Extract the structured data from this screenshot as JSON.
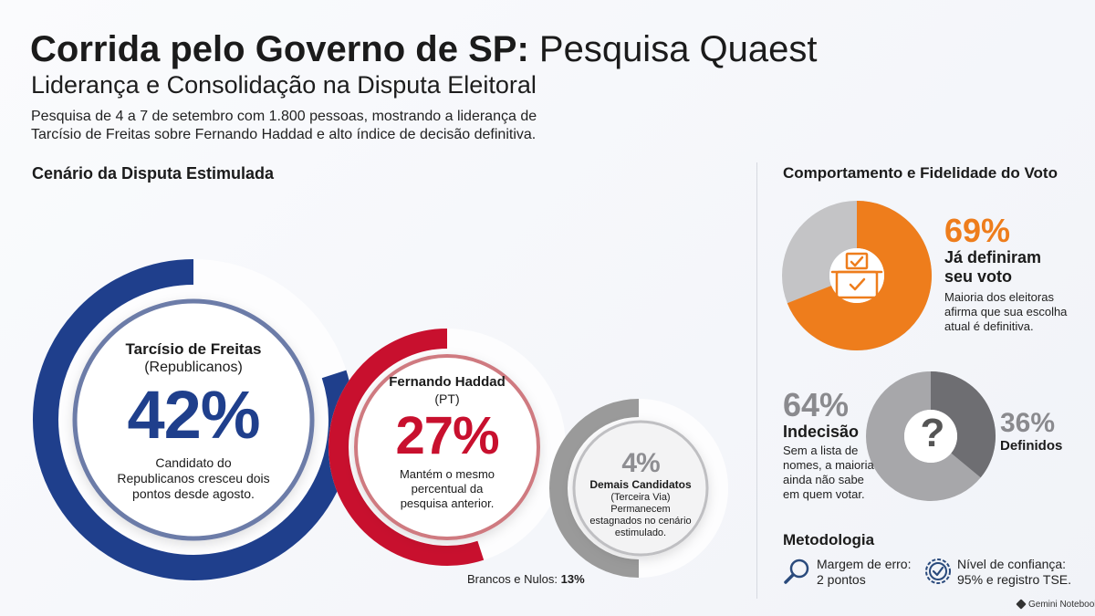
{
  "header": {
    "title_bold": "Corrida pelo Governo de SP:",
    "title_regular": "Pesquisa Quaest",
    "subtitle": "Liderança e Consolidação na Disputa Eleitoral",
    "description": "Pesquisa de 4 a 7 de setembro com 1.800 pessoas, mostrando a liderança de Tarcísio de Freitas sobre Fernando Haddad e alto índice de decisão definitiva."
  },
  "left": {
    "section_title": "Cenário da Disputa Estimulada",
    "candidates": [
      {
        "name": "Tarcísio de Freitas",
        "party": "(Republicanos)",
        "percent": "42%",
        "value": 42,
        "note": "Candidato do Republicanos cresceu dois pontos desde agosto.",
        "color": "#1f3f8c"
      },
      {
        "name": "Fernando Haddad",
        "party": "(PT)",
        "percent": "27%",
        "value": 27,
        "note": "Mantém o mesmo percentual da pesquisa anterior.",
        "color": "#c8102e"
      },
      {
        "name": "Demais Candidatos",
        "party": "(Terceira Via)",
        "percent": "4%",
        "value": 4,
        "note": "Permanecem estagnados no cenário estimulado.",
        "color": "#9a9a9a"
      }
    ],
    "blank_label": "Brancos e Nulos:",
    "blank_value": "13%"
  },
  "right": {
    "section_title": "Comportamento e Fidelidade do Voto",
    "decided": {
      "percent": "69%",
      "value": 69,
      "title": "Já definiram seu voto",
      "note": "Maioria dos eleitoras afirma que sua escolha atual é definitiva.",
      "icon": "ballot-box-icon",
      "color": "#ee7d1c"
    },
    "indecision": {
      "percent": "64%",
      "value": 64,
      "title": "Indecisão",
      "note": "Sem a lista de nomes, a maioria ainda não sabe em quem votar.",
      "icon": "question-mark-icon"
    },
    "defined": {
      "percent": "36%",
      "title": "Definidos"
    },
    "methodology": {
      "title": "Metodologia",
      "items": [
        {
          "icon": "magnifier-icon",
          "text": "Margem de erro: 2 pontos"
        },
        {
          "icon": "seal-check-icon",
          "text": "Nível de confiança: 95% e registro TSE."
        }
      ]
    }
  },
  "footer": {
    "brand": "Gemini Notebook"
  }
}
